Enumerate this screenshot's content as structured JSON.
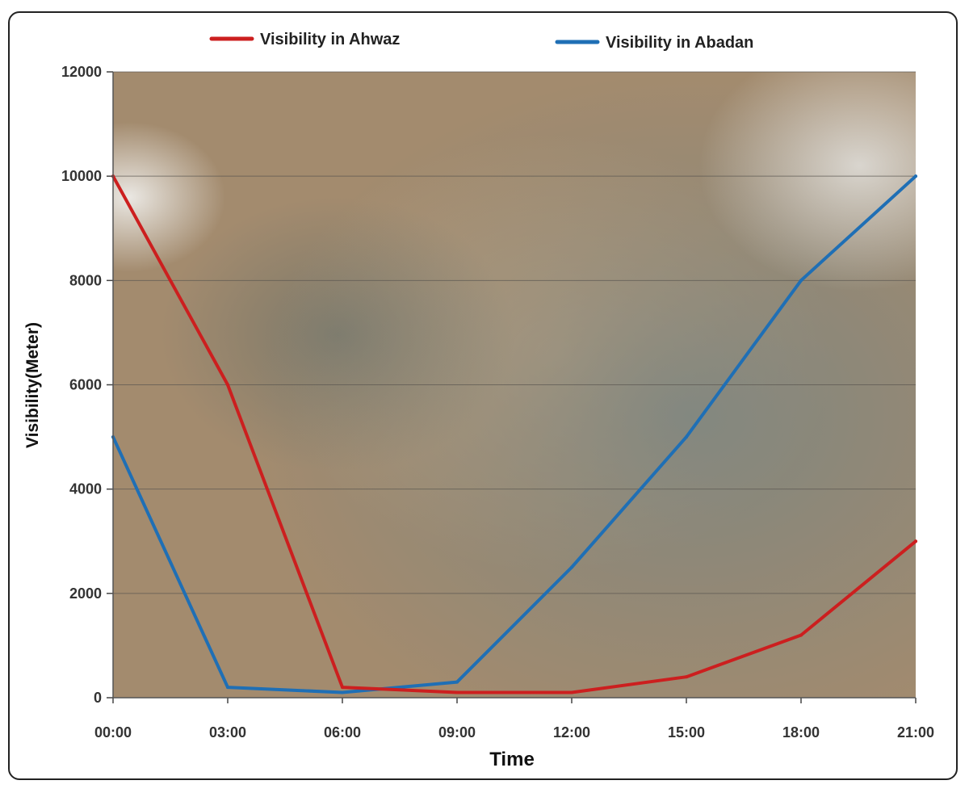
{
  "chart_data": {
    "type": "line",
    "title": "",
    "xlabel": "Time",
    "ylabel": "Visibility(Meter)",
    "x": [
      "00:00",
      "03:00",
      "06:00",
      "09:00",
      "12:00",
      "15:00",
      "18:00",
      "21:00"
    ],
    "ylim": [
      0,
      12000
    ],
    "yticks": [
      0,
      2000,
      4000,
      6000,
      8000,
      10000,
      12000
    ],
    "grid": true,
    "legend": "top",
    "background": "satellite image of a dust storm",
    "series": [
      {
        "name": "Visibility in Ahwaz",
        "color": "#cc1f1f",
        "values": [
          10000,
          6000,
          200,
          100,
          100,
          400,
          1200,
          3000
        ]
      },
      {
        "name": "Visibility in Abadan",
        "color": "#1f6fb5",
        "values": [
          5000,
          200,
          100,
          300,
          2500,
          5000,
          8000,
          10000
        ]
      }
    ]
  }
}
